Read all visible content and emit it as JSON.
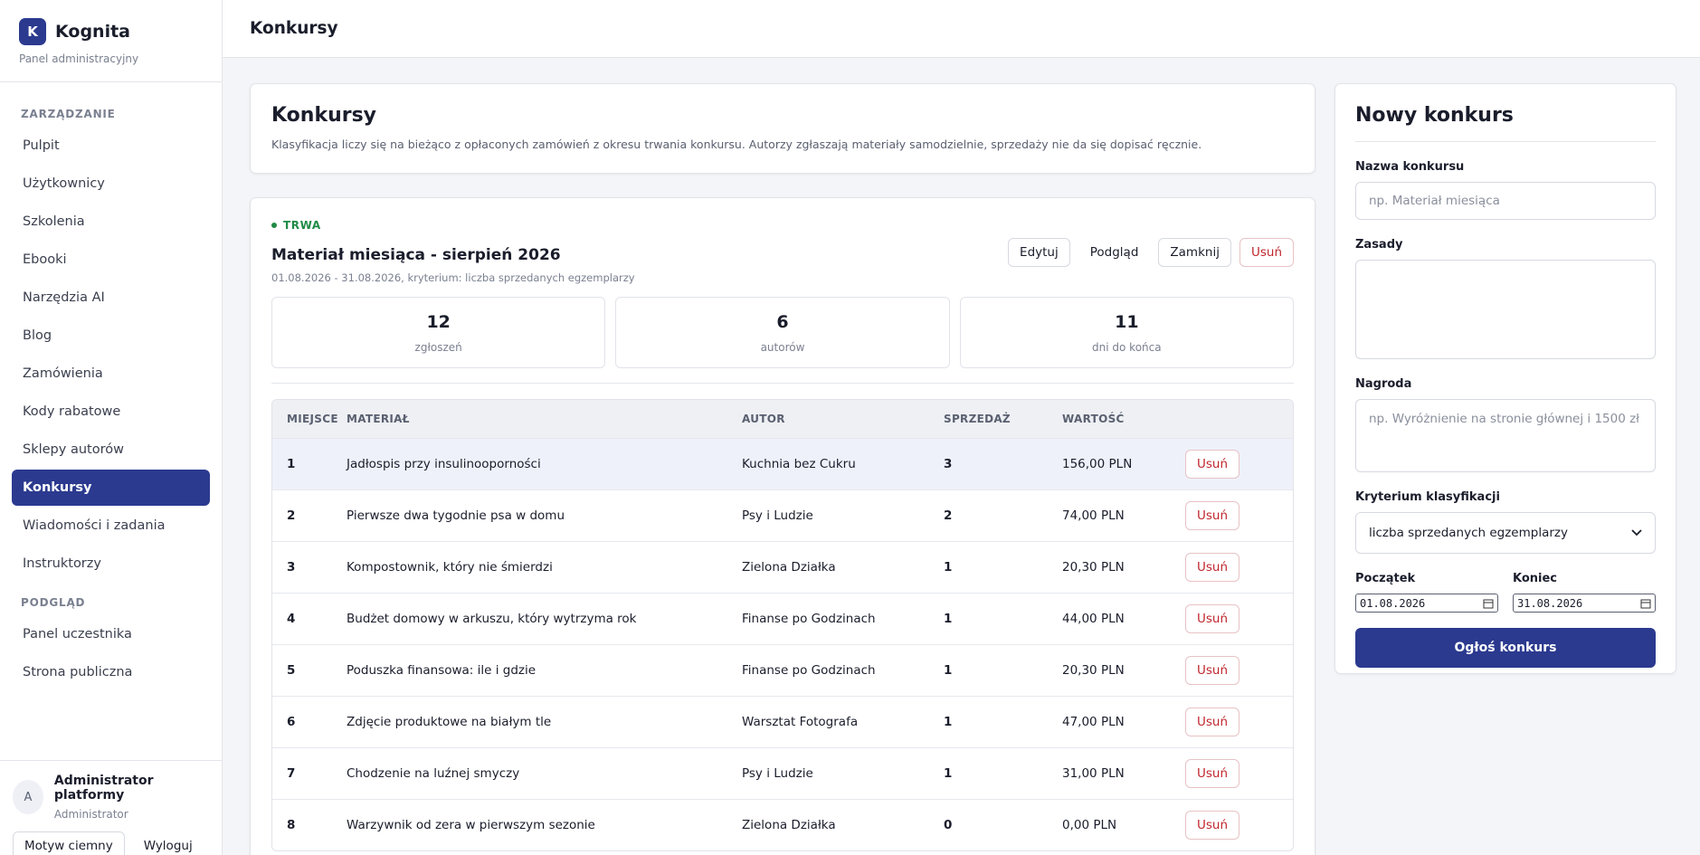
{
  "sidebar": {
    "logo": "K",
    "brand": "Kognita",
    "subtitle": "Panel administracyjny",
    "sections": [
      {
        "title": "ZARZĄDZANIE",
        "items": [
          {
            "label": "Pulpit"
          },
          {
            "label": "Użytkownicy"
          },
          {
            "label": "Szkolenia"
          },
          {
            "label": "Ebooki"
          },
          {
            "label": "Narzędzia AI"
          },
          {
            "label": "Blog"
          },
          {
            "label": "Zamówienia"
          },
          {
            "label": "Kody rabatowe"
          },
          {
            "label": "Sklepy autorów"
          },
          {
            "label": "Konkursy",
            "active": true
          },
          {
            "label": "Wiadomości i zadania"
          },
          {
            "label": "Instruktorzy"
          }
        ]
      },
      {
        "title": "PODGLĄD",
        "items": [
          {
            "label": "Panel uczestnika"
          },
          {
            "label": "Strona publiczna"
          }
        ]
      }
    ],
    "user": {
      "avatar": "A",
      "name": "Administrator platformy",
      "role": "Administrator",
      "theme_button": "Motyw ciemny",
      "logout": "Wyloguj"
    }
  },
  "header": {
    "title": "Konkursy"
  },
  "intro": {
    "title": "Konkursy",
    "text": "Klasyfikacja liczy się na bieżąco z opłaconych zamówień z okresu trwania konkursu. Autorzy zgłaszają materiały samodzielnie, sprzedaży nie da się dopisać ręcznie."
  },
  "contest": {
    "status": "TRWA",
    "title": "Materiał miesiąca - sierpień 2026",
    "meta": "01.08.2026 - 31.08.2026, kryterium: liczba sprzedanych egzemplarzy",
    "actions": [
      "Edytuj",
      "Podgląd",
      "Zamknij",
      "Usuń"
    ],
    "stats": [
      {
        "value": 12,
        "label": "zgłoszeń"
      },
      {
        "value": 6,
        "label": "autorów"
      },
      {
        "value": 11,
        "label": "dni do końca"
      }
    ],
    "table": {
      "columns": [
        "MIEJSCE",
        "MATERIAŁ",
        "AUTOR",
        "SPRZEDAŻ",
        "WARTOŚĆ"
      ],
      "rows": [
        [
          1,
          "Jadłospis przy insulinooporności",
          "Kuchnia bez Cukru",
          3,
          "156,00 PLN",
          "Usuń"
        ],
        [
          2,
          "Pierwsze dwa tygodnie psa w domu",
          "Psy i Ludzie",
          2,
          "74,00 PLN",
          "Usuń"
        ],
        [
          3,
          "Kompostownik, który nie śmierdzi",
          "Zielona Działka",
          1,
          "20,30 PLN",
          "Usuń"
        ],
        [
          4,
          "Budżet domowy w arkuszu, który wytrzyma rok",
          "Finanse po Godzinach",
          1,
          "44,00 PLN",
          "Usuń"
        ],
        [
          5,
          "Poduszka finansowa: ile i gdzie",
          "Finanse po Godzinach",
          1,
          "20,30 PLN",
          "Usuń"
        ],
        [
          6,
          "Zdjęcie produktowe na białym tle",
          "Warsztat Fotografa",
          1,
          "47,00 PLN",
          "Usuń"
        ],
        [
          7,
          "Chodzenie na luźnej smyczy",
          "Psy i Ludzie",
          1,
          "31,00 PLN",
          "Usuń"
        ],
        [
          8,
          "Warzywnik od zera w pierwszym sezonie",
          "Zielona Działka",
          0,
          "0,00 PLN",
          "Usuń"
        ]
      ]
    }
  },
  "form": {
    "title": "Nowy konkurs",
    "name_label": "Nazwa konkursu",
    "name_placeholder": "np. Materiał miesiąca",
    "rules_label": "Zasady",
    "prize_label": "Nagroda",
    "prize_placeholder": "np. Wyróżnienie na stronie głównej i 1500 zł",
    "criterion_label": "Kryterium klasyfikacji",
    "criterion_value": "liczba sprzedanych egzemplarzy",
    "start_label": "Początek",
    "start_value": "01.08.2026",
    "end_label": "Koniec",
    "end_value": "31.08.2026",
    "submit": "Ogłoś konkurs"
  }
}
